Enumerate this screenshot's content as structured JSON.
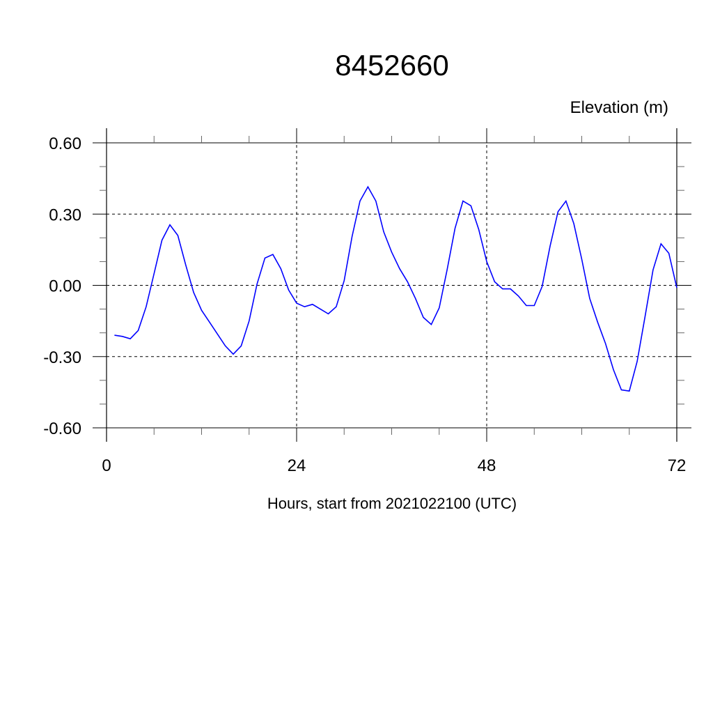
{
  "chart_data": {
    "type": "line",
    "title": "8452660",
    "ylabel": "Elevation (m)",
    "xlabel": "Hours, start from 2021022100 (UTC)",
    "xlim": [
      0,
      72
    ],
    "ylim": [
      -0.6,
      0.6
    ],
    "xticks": [
      0,
      24,
      48,
      72
    ],
    "xtick_labels": [
      "0",
      "24",
      "48",
      "72"
    ],
    "yticks": [
      0.6,
      0.3,
      0.0,
      -0.3,
      -0.6
    ],
    "ytick_labels": [
      "0.60",
      "0.30",
      "0.00",
      "-0.30",
      "-0.60"
    ],
    "grid": true,
    "line_color": "#0000ff",
    "series": [
      {
        "x": [
          1,
          2,
          3,
          4,
          5,
          6,
          7,
          8,
          9,
          10,
          11,
          12,
          13,
          14,
          15,
          16,
          17,
          18,
          19,
          20,
          21,
          22,
          23,
          24,
          25,
          26,
          27,
          28,
          29,
          30,
          31,
          32,
          33,
          34,
          35,
          36,
          37,
          38,
          39,
          40,
          41,
          42,
          43,
          44,
          45,
          46,
          47,
          48,
          49,
          50,
          51,
          52,
          53,
          54,
          55,
          56,
          57,
          58,
          59,
          60,
          61,
          62,
          63,
          64,
          65,
          66,
          67,
          68,
          69,
          70,
          71,
          72
        ],
        "y": [
          -0.21,
          -0.215,
          -0.225,
          -0.19,
          -0.09,
          0.05,
          0.19,
          0.255,
          0.21,
          0.085,
          -0.03,
          -0.105,
          -0.155,
          -0.205,
          -0.255,
          -0.29,
          -0.255,
          -0.15,
          0.005,
          0.115,
          0.13,
          0.07,
          -0.02,
          -0.075,
          -0.09,
          -0.08,
          -0.1,
          -0.12,
          -0.09,
          0.02,
          0.205,
          0.355,
          0.415,
          0.355,
          0.225,
          0.14,
          0.07,
          0.015,
          -0.055,
          -0.135,
          -0.165,
          -0.095,
          0.065,
          0.24,
          0.355,
          0.335,
          0.235,
          0.1,
          0.015,
          -0.015,
          -0.015,
          -0.045,
          -0.085,
          -0.085,
          -0.005,
          0.165,
          0.31,
          0.355,
          0.26,
          0.11,
          -0.055,
          -0.155,
          -0.245,
          -0.355,
          -0.44,
          -0.445,
          -0.32,
          -0.13,
          0.065,
          0.175,
          0.135,
          -0.01
        ]
      }
    ]
  }
}
